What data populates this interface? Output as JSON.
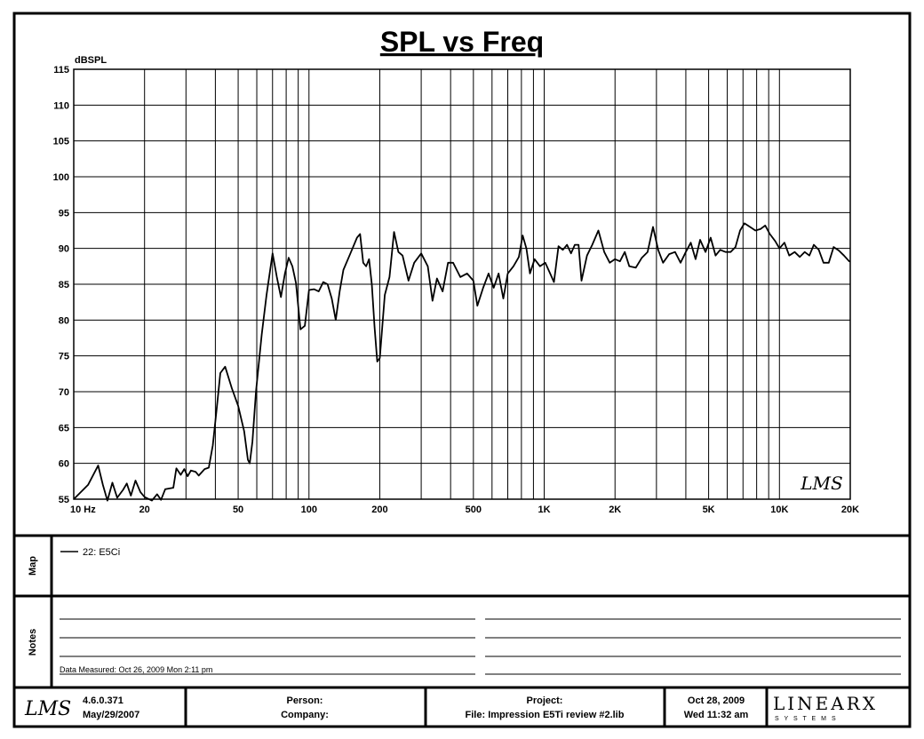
{
  "chart_data": {
    "type": "line",
    "title": "SPL vs Freq",
    "ylabel": "dBSPL",
    "xlabel": "",
    "x_scale": "log",
    "xlim": [
      10,
      20000
    ],
    "ylim": [
      55,
      115
    ],
    "grid": true,
    "yticks": [
      55,
      60,
      65,
      70,
      75,
      80,
      85,
      90,
      95,
      100,
      105,
      110,
      115
    ],
    "xticks": [
      {
        "value": 10,
        "label": "10  Hz"
      },
      {
        "value": 20,
        "label": "20"
      },
      {
        "value": 50,
        "label": "50"
      },
      {
        "value": 100,
        "label": "100"
      },
      {
        "value": 200,
        "label": "200"
      },
      {
        "value": 500,
        "label": "500"
      },
      {
        "value": 1000,
        "label": "1K"
      },
      {
        "value": 2000,
        "label": "2K"
      },
      {
        "value": 5000,
        "label": "5K"
      },
      {
        "value": 10000,
        "label": "10K"
      },
      {
        "value": 20000,
        "label": "20K"
      }
    ],
    "series": [
      {
        "name": "22: E5Ci",
        "color": "#000000",
        "points": [
          [
            10,
            55
          ],
          [
            11.5,
            57
          ],
          [
            12.7,
            59.7
          ],
          [
            13.3,
            57
          ],
          [
            13.9,
            54.8
          ],
          [
            14.6,
            57.3
          ],
          [
            15.3,
            55.2
          ],
          [
            16.2,
            56.3
          ],
          [
            16.8,
            57.2
          ],
          [
            17.5,
            55.5
          ],
          [
            18.3,
            57.6
          ],
          [
            19.2,
            56
          ],
          [
            20,
            55.3
          ],
          [
            21.5,
            54.8
          ],
          [
            22.6,
            55.7
          ],
          [
            23.5,
            54.9
          ],
          [
            24.5,
            56.4
          ],
          [
            26.5,
            56.6
          ],
          [
            27.3,
            59.3
          ],
          [
            28.5,
            58.4
          ],
          [
            29.5,
            59.2
          ],
          [
            30.5,
            58.2
          ],
          [
            31.5,
            59
          ],
          [
            33,
            58.8
          ],
          [
            34,
            58.3
          ],
          [
            36,
            59.2
          ],
          [
            37.5,
            59.4
          ],
          [
            39,
            62.5
          ],
          [
            40.5,
            67.5
          ],
          [
            42,
            72.6
          ],
          [
            44,
            73.5
          ],
          [
            47,
            70.5
          ],
          [
            50,
            68
          ],
          [
            53,
            64.5
          ],
          [
            55,
            60.5
          ],
          [
            56,
            60
          ],
          [
            57.5,
            63
          ],
          [
            59.5,
            70
          ],
          [
            63,
            78
          ],
          [
            66,
            83.5
          ],
          [
            70,
            89.3
          ],
          [
            73,
            86
          ],
          [
            76,
            83.2
          ],
          [
            79,
            86.5
          ],
          [
            82,
            88.7
          ],
          [
            85,
            87.5
          ],
          [
            88,
            85.2
          ],
          [
            92,
            78.7
          ],
          [
            96,
            79.2
          ],
          [
            100,
            84.2
          ],
          [
            105,
            84.3
          ],
          [
            110,
            84
          ],
          [
            115,
            85.3
          ],
          [
            120,
            85
          ],
          [
            125,
            83
          ],
          [
            130,
            80
          ],
          [
            135,
            84
          ],
          [
            140,
            87
          ],
          [
            150,
            89.3
          ],
          [
            160,
            91.5
          ],
          [
            165,
            92
          ],
          [
            170,
            88
          ],
          [
            175,
            87.5
          ],
          [
            180,
            88.5
          ],
          [
            185,
            85
          ],
          [
            190,
            79
          ],
          [
            195,
            74.2
          ],
          [
            200,
            74.7
          ],
          [
            210,
            83.5
          ],
          [
            220,
            86
          ],
          [
            230,
            92.3
          ],
          [
            240,
            89.5
          ],
          [
            250,
            89
          ],
          [
            265,
            85.5
          ],
          [
            280,
            88
          ],
          [
            300,
            89.3
          ],
          [
            320,
            87.5
          ],
          [
            335,
            82.7
          ],
          [
            350,
            85.8
          ],
          [
            370,
            84
          ],
          [
            390,
            88
          ],
          [
            410,
            88
          ],
          [
            440,
            86
          ],
          [
            470,
            86.5
          ],
          [
            500,
            85.5
          ],
          [
            520,
            82
          ],
          [
            550,
            84.5
          ],
          [
            580,
            86.5
          ],
          [
            610,
            84.5
          ],
          [
            640,
            86.5
          ],
          [
            670,
            83
          ],
          [
            700,
            86.5
          ],
          [
            740,
            87.5
          ],
          [
            780,
            88.8
          ],
          [
            810,
            91.8
          ],
          [
            840,
            90
          ],
          [
            870,
            86.5
          ],
          [
            910,
            88.5
          ],
          [
            960,
            87.5
          ],
          [
            1010,
            88
          ],
          [
            1060,
            86.5
          ],
          [
            1100,
            85.3
          ],
          [
            1150,
            90.3
          ],
          [
            1200,
            89.8
          ],
          [
            1250,
            90.5
          ],
          [
            1300,
            89.3
          ],
          [
            1350,
            90.5
          ],
          [
            1400,
            90.5
          ],
          [
            1440,
            85.5
          ],
          [
            1520,
            89
          ],
          [
            1600,
            90.5
          ],
          [
            1700,
            92.5
          ],
          [
            1800,
            89.5
          ],
          [
            1900,
            88
          ],
          [
            2000,
            88.5
          ],
          [
            2100,
            88.2
          ],
          [
            2200,
            89.5
          ],
          [
            2300,
            87.5
          ],
          [
            2450,
            87.3
          ],
          [
            2600,
            88.7
          ],
          [
            2750,
            89.5
          ],
          [
            2900,
            93
          ],
          [
            3050,
            89.8
          ],
          [
            3200,
            88
          ],
          [
            3400,
            89.2
          ],
          [
            3600,
            89.5
          ],
          [
            3800,
            88
          ],
          [
            4000,
            89.5
          ],
          [
            4200,
            90.8
          ],
          [
            4400,
            88.5
          ],
          [
            4600,
            91.2
          ],
          [
            4850,
            89.5
          ],
          [
            5100,
            91.5
          ],
          [
            5350,
            89
          ],
          [
            5600,
            89.8
          ],
          [
            5900,
            89.5
          ],
          [
            6200,
            89.5
          ],
          [
            6500,
            90.2
          ],
          [
            6800,
            92.5
          ],
          [
            7100,
            93.5
          ],
          [
            7500,
            93
          ],
          [
            7900,
            92.5
          ],
          [
            8300,
            92.7
          ],
          [
            8700,
            93.2
          ],
          [
            9100,
            92
          ],
          [
            9600,
            91
          ],
          [
            10000,
            90
          ],
          [
            10500,
            90.8
          ],
          [
            11000,
            89
          ],
          [
            11600,
            89.5
          ],
          [
            12200,
            88.8
          ],
          [
            12800,
            89.5
          ],
          [
            13400,
            89
          ],
          [
            14000,
            90.5
          ],
          [
            14700,
            89.8
          ],
          [
            15400,
            88
          ],
          [
            16200,
            88
          ],
          [
            17000,
            90.2
          ],
          [
            17900,
            89.7
          ],
          [
            18800,
            89
          ],
          [
            19800,
            88.2
          ],
          [
            20000,
            88.2
          ]
        ]
      }
    ]
  },
  "map": {
    "label": "Map",
    "legend": [
      {
        "name": "22: E5Ci"
      }
    ]
  },
  "notes": {
    "label": "Notes",
    "data_measured": "Data Measured:  Oct 26, 2009  Mon  2:11 pm"
  },
  "footer": {
    "logo": "LMS",
    "version": "4.6.0.371",
    "version_date": "May/29/2007",
    "person": "Person:",
    "company": "Company:",
    "project": "Project:",
    "file": "File: Impression E5Ti review #2.lib",
    "date": "Oct 28, 2009",
    "time": "Wed 11:32 am",
    "brand": "LINEARX",
    "brand_sub": "S Y S T E M S"
  },
  "watermark": "LMS"
}
